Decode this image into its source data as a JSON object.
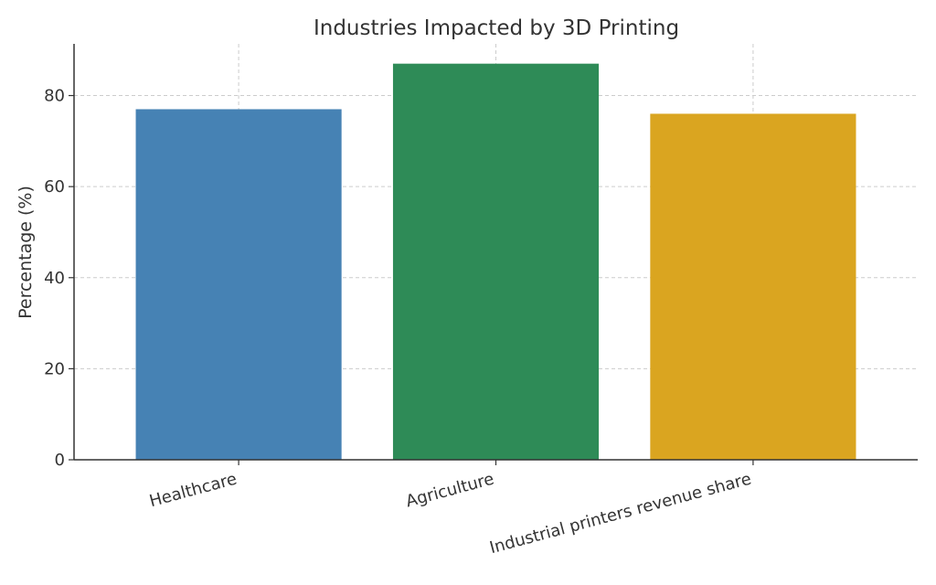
{
  "chart_data": {
    "type": "bar",
    "title": "Industries Impacted by 3D Printing",
    "xlabel": "",
    "ylabel": "Percentage (%)",
    "categories": [
      "Healthcare",
      "Agriculture",
      "Industrial printers revenue share"
    ],
    "values": [
      77,
      87,
      76
    ],
    "colors": [
      "#4682b4",
      "#2e8b57",
      "#daa520"
    ],
    "ylim": [
      0,
      91.35
    ],
    "yticks": [
      0,
      20,
      40,
      60,
      80
    ],
    "grid": true,
    "legend": "none"
  }
}
